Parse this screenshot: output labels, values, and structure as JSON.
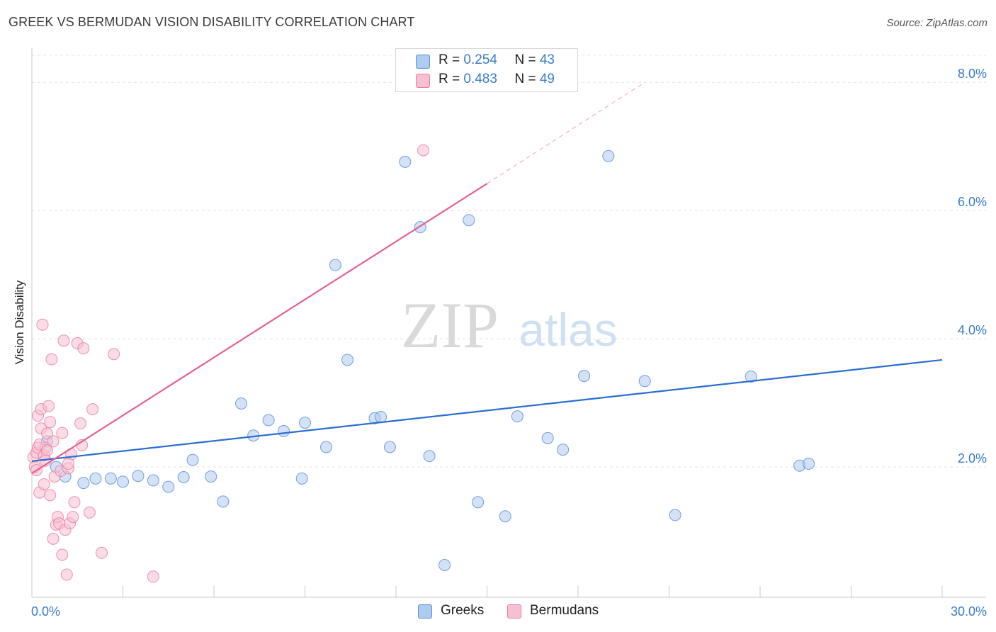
{
  "title": "GREEK VS BERMUDAN VISION DISABILITY CORRELATION CHART",
  "source": "Source: ZipAtlas.com",
  "watermark": {
    "zip": "ZIP",
    "atlas": "atlas"
  },
  "legend": {
    "greeks": {
      "r_label": "R = ",
      "r_value": "0.254",
      "n_label": "N = ",
      "n_value": "43"
    },
    "bermudans": {
      "r_label": "R = ",
      "r_value": "0.483",
      "n_label": "N = ",
      "n_value": "49"
    }
  },
  "colors": {
    "greeks_fill": "#aecbf0",
    "greeks_stroke": "#5b8fd6",
    "greeks_line": "#2a6fd1",
    "bermudans_fill": "#f7bfd2",
    "bermudans_stroke": "#e8819f",
    "bermudans_line": "#e8608e",
    "axis_value": "#3a7cc9",
    "grid": "#e4e4e4"
  },
  "chart_data": {
    "type": "scatter",
    "title": "GREEK VS BERMUDAN VISION DISABILITY CORRELATION CHART",
    "xlabel": "",
    "ylabel": "Vision Disability",
    "xlim": [
      0,
      30
    ],
    "ylim": [
      0,
      8.4
    ],
    "x_tick_labels": [
      "0.0%",
      "30.0%"
    ],
    "y_ticks": [
      2,
      4,
      6,
      8
    ],
    "y_tick_labels": [
      "2.0%",
      "4.0%",
      "6.0%",
      "8.0%"
    ],
    "grid": true,
    "legend_position": "top-center",
    "series": [
      {
        "name": "Greeks",
        "points": [
          [
            0.5,
            2.4
          ],
          [
            0.8,
            2.0
          ],
          [
            1.1,
            1.85
          ],
          [
            1.7,
            1.75
          ],
          [
            2.1,
            1.82
          ],
          [
            2.6,
            1.82
          ],
          [
            3.0,
            1.77
          ],
          [
            3.5,
            1.86
          ],
          [
            4.0,
            1.79
          ],
          [
            4.5,
            1.69
          ],
          [
            5.0,
            1.84
          ],
          [
            5.3,
            2.11
          ],
          [
            5.9,
            1.85
          ],
          [
            6.3,
            1.46
          ],
          [
            6.9,
            2.99
          ],
          [
            7.3,
            2.49
          ],
          [
            7.8,
            2.73
          ],
          [
            8.3,
            2.56
          ],
          [
            8.9,
            1.82
          ],
          [
            9.0,
            2.69
          ],
          [
            9.7,
            2.31
          ],
          [
            10.0,
            5.15
          ],
          [
            10.4,
            3.67
          ],
          [
            11.3,
            2.76
          ],
          [
            11.5,
            2.78
          ],
          [
            11.8,
            2.31
          ],
          [
            12.3,
            6.76
          ],
          [
            12.8,
            5.74
          ],
          [
            13.1,
            2.17
          ],
          [
            13.6,
            0.47
          ],
          [
            14.4,
            5.85
          ],
          [
            14.7,
            1.45
          ],
          [
            15.6,
            1.23
          ],
          [
            16.0,
            2.79
          ],
          [
            17.0,
            2.45
          ],
          [
            17.5,
            2.27
          ],
          [
            18.2,
            3.42
          ],
          [
            19.0,
            6.85
          ],
          [
            20.2,
            3.34
          ],
          [
            21.2,
            1.25
          ],
          [
            23.7,
            3.41
          ],
          [
            25.3,
            2.02
          ],
          [
            25.6,
            2.05
          ]
        ],
        "trend": {
          "x": [
            0.0,
            30.0
          ],
          "y": [
            2.09,
            3.67
          ]
        }
      },
      {
        "name": "Bermudans",
        "points": [
          [
            0.05,
            2.15
          ],
          [
            0.1,
            2.0
          ],
          [
            0.15,
            2.22
          ],
          [
            0.2,
            2.3
          ],
          [
            0.2,
            2.8
          ],
          [
            0.25,
            1.6
          ],
          [
            0.3,
            2.6
          ],
          [
            0.3,
            2.9
          ],
          [
            0.35,
            4.22
          ],
          [
            0.4,
            2.18
          ],
          [
            0.4,
            1.73
          ],
          [
            0.45,
            2.3
          ],
          [
            0.5,
            2.52
          ],
          [
            0.55,
            2.95
          ],
          [
            0.6,
            2.7
          ],
          [
            0.6,
            1.56
          ],
          [
            0.65,
            3.68
          ],
          [
            0.7,
            0.88
          ],
          [
            0.75,
            1.85
          ],
          [
            0.8,
            1.1
          ],
          [
            0.85,
            1.22
          ],
          [
            0.9,
            1.12
          ],
          [
            0.95,
            1.94
          ],
          [
            1.0,
            0.63
          ],
          [
            1.0,
            2.53
          ],
          [
            1.05,
            3.97
          ],
          [
            1.1,
            1.02
          ],
          [
            1.15,
            0.32
          ],
          [
            1.2,
            1.98
          ],
          [
            1.25,
            1.12
          ],
          [
            1.3,
            2.2
          ],
          [
            1.35,
            1.22
          ],
          [
            1.4,
            1.45
          ],
          [
            1.5,
            3.93
          ],
          [
            1.6,
            2.68
          ],
          [
            1.65,
            2.34
          ],
          [
            1.7,
            3.85
          ],
          [
            1.9,
            1.29
          ],
          [
            2.0,
            2.9
          ],
          [
            2.3,
            0.66
          ],
          [
            2.7,
            3.76
          ],
          [
            4.0,
            0.29
          ],
          [
            12.9,
            6.94
          ],
          [
            0.25,
            2.35
          ],
          [
            0.5,
            2.26
          ],
          [
            0.7,
            2.4
          ],
          [
            0.15,
            1.95
          ],
          [
            1.2,
            2.05
          ],
          [
            0.45,
            2.1
          ]
        ],
        "trend": {
          "x": [
            0.0,
            15.0
          ],
          "y": [
            1.9,
            6.42
          ]
        },
        "trend_extension": {
          "x": [
            15.0,
            20.2
          ],
          "y": [
            6.42,
            8.0
          ]
        }
      }
    ]
  }
}
